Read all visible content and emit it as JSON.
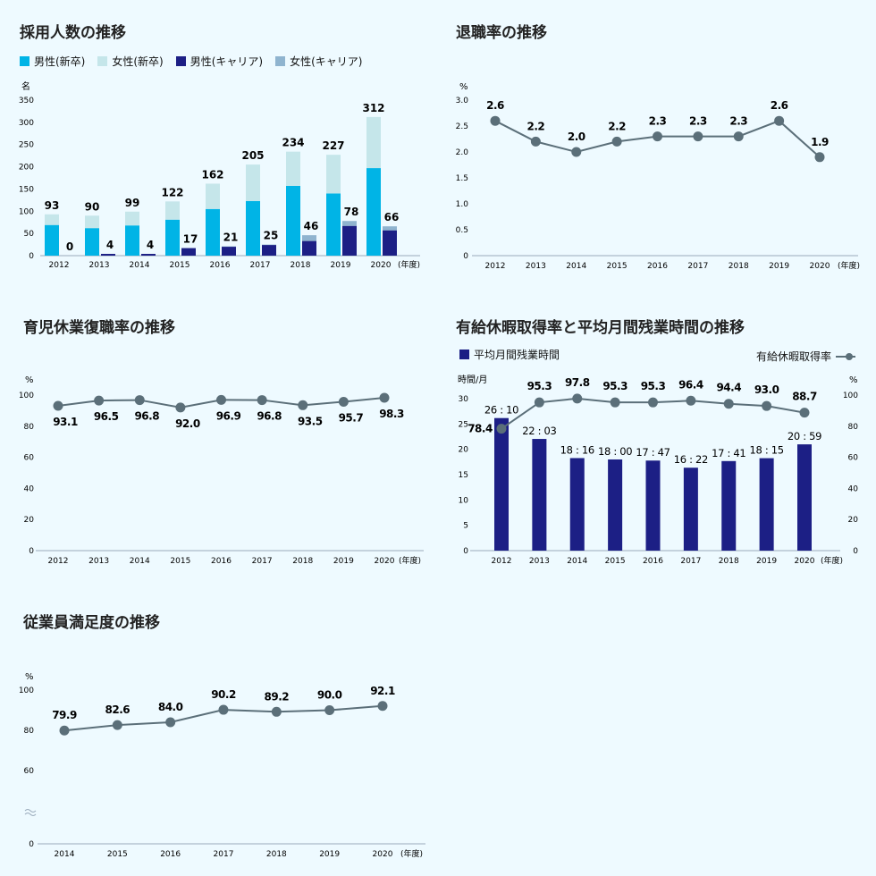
{
  "years_label": "(年度)",
  "colors": {
    "male_new": "#00b4e6",
    "female_new": "#c5e6ea",
    "male_career": "#1c1f85",
    "female_career": "#8fb4cf",
    "line": "#5b6f79",
    "dot": "#5b6f79",
    "navy": "#1c1f85"
  },
  "chart_data": [
    {
      "id": "hiring",
      "type": "bar",
      "title": "採用人数の推移",
      "ylabel": "名",
      "xlabel": "(年度)",
      "ylim": [
        0,
        350
      ],
      "yticks": [
        0,
        50,
        100,
        150,
        200,
        250,
        300,
        350
      ],
      "categories": [
        "2012",
        "2013",
        "2014",
        "2015",
        "2016",
        "2017",
        "2018",
        "2019",
        "2020"
      ],
      "legend": [
        "男性(新卒)",
        "女性(新卒)",
        "男性(キャリア)",
        "女性(キャリア)"
      ],
      "new_grad": {
        "male": [
          69,
          62,
          68,
          81,
          105,
          123,
          157,
          140,
          197
        ],
        "female": [
          24,
          28,
          31,
          41,
          57,
          82,
          77,
          87,
          115
        ],
        "totals": [
          "93",
          "90",
          "99",
          "122",
          "162",
          "205",
          "234",
          "227",
          "312"
        ]
      },
      "career": {
        "male": [
          0,
          4,
          4,
          17,
          20,
          24,
          33,
          67,
          57
        ],
        "female": [
          0,
          0,
          0,
          0,
          1,
          1,
          13,
          11,
          9
        ],
        "totals": [
          "0",
          "4",
          "4",
          "17",
          "21",
          "25",
          "46",
          "78",
          "66"
        ]
      }
    },
    {
      "id": "turnover",
      "type": "line",
      "title": "退職率の推移",
      "ylabel": "%",
      "xlabel": "(年度)",
      "ylim": [
        0,
        3.0
      ],
      "yticks": [
        "0",
        "0.5",
        "1.0",
        "1.5",
        "2.0",
        "2.5",
        "3.0"
      ],
      "categories": [
        "2012",
        "2013",
        "2014",
        "2015",
        "2016",
        "2017",
        "2018",
        "2019",
        "2020"
      ],
      "values": [
        2.6,
        2.2,
        2.0,
        2.2,
        2.3,
        2.3,
        2.3,
        2.6,
        1.9
      ],
      "labels": [
        "2.6",
        "2.2",
        "2.0",
        "2.2",
        "2.3",
        "2.3",
        "2.3",
        "2.6",
        "1.9"
      ]
    },
    {
      "id": "return",
      "type": "line",
      "title": "育児休業復職率の推移",
      "ylabel": "%",
      "xlabel": "(年度)",
      "ylim": [
        0,
        100
      ],
      "yticks": [
        "0",
        "20",
        "40",
        "60",
        "80",
        "100"
      ],
      "categories": [
        "2012",
        "2013",
        "2014",
        "2015",
        "2016",
        "2017",
        "2018",
        "2019",
        "2020"
      ],
      "values": [
        93.1,
        96.5,
        96.8,
        92.0,
        96.9,
        96.8,
        93.5,
        95.7,
        98.3
      ],
      "labels": [
        "93.1",
        "96.5",
        "96.8",
        "92.0",
        "96.9",
        "96.8",
        "93.5",
        "95.7",
        "98.3"
      ]
    },
    {
      "id": "leave",
      "type": "bar",
      "title": "有給休暇取得率と平均月間残業時間の推移",
      "legend_bar": "平均月間残業時間",
      "legend_line": "有給休暇取得率",
      "ylabel_left": "時間/月",
      "ylabel_right": "%",
      "xlabel": "(年度)",
      "ylim_left": [
        0,
        30
      ],
      "ylim_right": [
        0,
        100
      ],
      "yticks_left": [
        "0",
        "5",
        "10",
        "15",
        "20",
        "25",
        "30"
      ],
      "yticks_right": [
        "0",
        "20",
        "40",
        "60",
        "80",
        "100"
      ],
      "categories": [
        "2012",
        "2013",
        "2014",
        "2015",
        "2016",
        "2017",
        "2018",
        "2019",
        "2020"
      ],
      "overtime_hours": [
        26.17,
        22.05,
        18.27,
        18.0,
        17.78,
        16.37,
        17.68,
        18.25,
        20.98
      ],
      "overtime_labels": [
        "26 : 10",
        "22 : 03",
        "18 : 16",
        "18 : 00",
        "17 : 47",
        "16 : 22",
        "17 : 41",
        "18 : 15",
        "20 : 59"
      ],
      "leave_rate": [
        78.4,
        95.3,
        97.8,
        95.3,
        95.3,
        96.4,
        94.4,
        93.0,
        88.7
      ],
      "leave_labels": [
        "78.4",
        "95.3",
        "97.8",
        "95.3",
        "95.3",
        "96.4",
        "94.4",
        "93.0",
        "88.7"
      ]
    },
    {
      "id": "satisfaction",
      "type": "line",
      "title": "従業員満足度の推移",
      "ylabel": "%",
      "xlabel": "(年度)",
      "ylim": [
        0,
        100
      ],
      "yticks": [
        "0",
        "60",
        "80",
        "100"
      ],
      "axis_break": true,
      "categories": [
        "2014",
        "2015",
        "2016",
        "2017",
        "2018",
        "2019",
        "2020"
      ],
      "values": [
        79.9,
        82.6,
        84.0,
        90.2,
        89.2,
        90.0,
        92.1
      ],
      "labels": [
        "79.9",
        "82.6",
        "84.0",
        "90.2",
        "89.2",
        "90.0",
        "92.1"
      ]
    }
  ]
}
